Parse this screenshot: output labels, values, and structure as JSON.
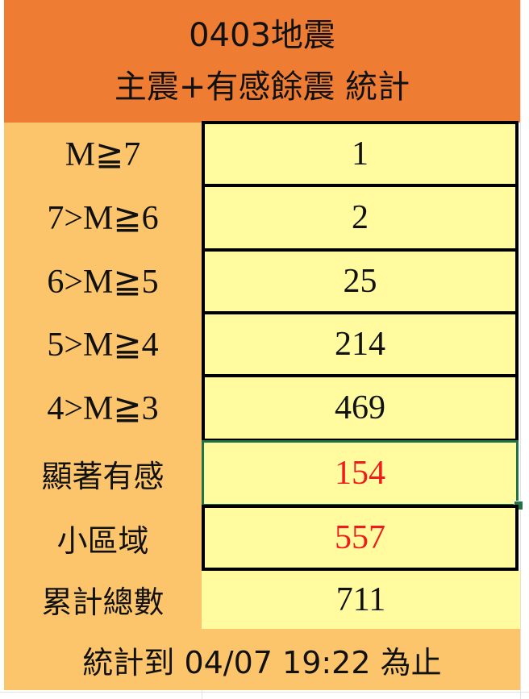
{
  "header": {
    "line1": "0403地震",
    "line2": "主震+有感餘震 統計"
  },
  "rows": [
    {
      "label": "M≧7",
      "value": "1"
    },
    {
      "label": "7>M≧6",
      "value": "2"
    },
    {
      "label": "6>M≧5",
      "value": "25"
    },
    {
      "label": "5>M≧4",
      "value": "214"
    },
    {
      "label": "4>M≧3",
      "value": "469"
    },
    {
      "label": "顯著有感",
      "value": "154"
    },
    {
      "label": "小區域",
      "value": "557"
    },
    {
      "label": "累計總數",
      "value": "711"
    }
  ],
  "footer": "統計到 04/07 19:22 為止",
  "colors": {
    "header": "#ee7d33",
    "label_bg": "#fcc56c",
    "value_bg": "#fffb9e",
    "highlight_text": "#ee1c1c",
    "selection": "#217346"
  }
}
